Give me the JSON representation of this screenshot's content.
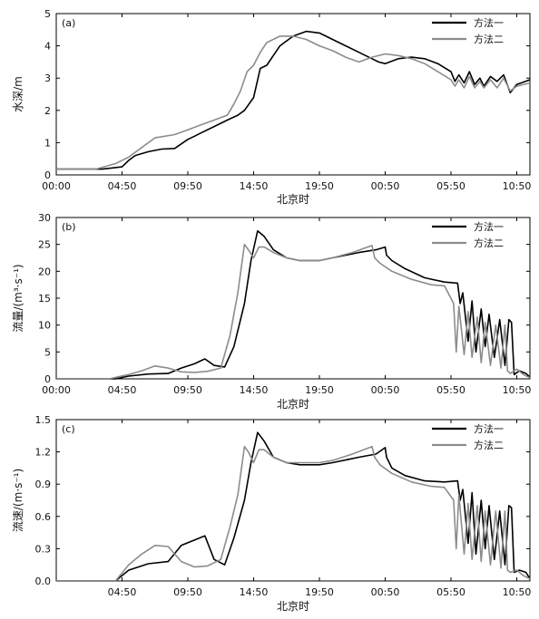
{
  "figure": {
    "panels": [
      {
        "id": "a",
        "label": "(a)",
        "ylabel": "水深/m",
        "xlabel": "北京时"
      },
      {
        "id": "b",
        "label": "(b)",
        "ylabel": "流量/(m³·s⁻¹)",
        "xlabel": "北京时"
      },
      {
        "id": "c",
        "label": "(c)",
        "ylabel": "流速/(m·s⁻¹)",
        "xlabel": "北京时"
      }
    ],
    "legend": {
      "method1": "方法一",
      "method2": "方法二"
    },
    "colors": {
      "method1": "#000000",
      "method2": "#8c8c8c"
    }
  },
  "chart_data": [
    {
      "type": "line",
      "panel": "(a)",
      "xlabel": "北京时",
      "ylabel": "水深/m",
      "xlim": [
        0,
        36
      ],
      "ylim": [
        0,
        5
      ],
      "x_ticks": [
        0,
        5,
        10,
        15,
        20,
        25,
        30,
        35
      ],
      "x_tick_labels": [
        "00:00",
        "04:50",
        "09:50",
        "14:50",
        "19:50",
        "00:50",
        "05:50",
        "10:50"
      ],
      "y_ticks": [
        0,
        1,
        2,
        3,
        4,
        5
      ],
      "y_tick_labels": [
        "0",
        "1",
        "2",
        "3",
        "4",
        "5"
      ],
      "legend_position": "top-right",
      "series": [
        {
          "name": "方法一",
          "x": [
            0,
            3.5,
            5,
            5.5,
            6,
            7,
            8,
            9,
            10,
            10.5,
            11,
            12,
            13,
            13.8,
            14.3,
            15,
            15.5,
            16,
            17,
            18,
            19,
            20,
            21,
            22,
            23,
            24,
            24.5,
            25,
            26,
            27,
            28,
            29,
            30,
            30.3,
            30.6,
            31,
            31.4,
            31.8,
            32.2,
            32.5,
            33,
            33.5,
            34,
            34.5,
            35,
            36
          ],
          "y": [
            0.18,
            0.18,
            0.25,
            0.45,
            0.6,
            0.72,
            0.8,
            0.82,
            1.1,
            1.2,
            1.3,
            1.5,
            1.7,
            1.85,
            2.0,
            2.4,
            3.3,
            3.4,
            4.0,
            4.3,
            4.45,
            4.4,
            4.2,
            4.0,
            3.8,
            3.6,
            3.5,
            3.45,
            3.6,
            3.65,
            3.6,
            3.45,
            3.2,
            2.9,
            3.1,
            2.85,
            3.2,
            2.8,
            3.0,
            2.75,
            3.05,
            2.9,
            3.1,
            2.55,
            2.8,
            2.95
          ]
        },
        {
          "name": "方法二",
          "x": [
            0,
            3,
            4.5,
            5.5,
            6.5,
            7.5,
            9,
            10,
            11,
            12,
            13,
            13.5,
            14,
            14.5,
            15,
            15.5,
            16,
            17,
            18,
            19,
            20,
            21,
            22,
            23,
            24,
            25,
            26,
            27,
            28,
            29,
            30,
            30.3,
            30.6,
            31,
            31.4,
            31.8,
            32.2,
            32.5,
            33,
            33.5,
            34,
            34.5,
            35,
            36
          ],
          "y": [
            0.18,
            0.18,
            0.35,
            0.55,
            0.85,
            1.15,
            1.25,
            1.4,
            1.55,
            1.7,
            1.85,
            2.2,
            2.6,
            3.2,
            3.4,
            3.8,
            4.1,
            4.3,
            4.3,
            4.2,
            4.0,
            3.85,
            3.65,
            3.5,
            3.65,
            3.75,
            3.7,
            3.6,
            3.45,
            3.2,
            2.95,
            2.75,
            2.95,
            2.7,
            3.05,
            2.7,
            2.9,
            2.7,
            2.95,
            2.7,
            3.0,
            2.6,
            2.75,
            2.85
          ]
        }
      ]
    },
    {
      "type": "line",
      "panel": "(b)",
      "xlabel": "北京时",
      "ylabel": "流量/(m³·s⁻¹)",
      "xlim": [
        0,
        36
      ],
      "ylim": [
        0,
        30
      ],
      "x_ticks": [
        0,
        5,
        10,
        15,
        20,
        25,
        30,
        35
      ],
      "x_tick_labels": [
        "00:00",
        "04:50",
        "09:50",
        "14:50",
        "19:50",
        "00:50",
        "05:50",
        "10:50"
      ],
      "y_ticks": [
        0,
        5,
        10,
        15,
        20,
        25,
        30
      ],
      "y_tick_labels": [
        "0",
        "5",
        "10",
        "15",
        "20",
        "25",
        "30"
      ],
      "legend_position": "top-right",
      "series": [
        {
          "name": "方法一",
          "x": [
            0,
            4.5,
            5.5,
            7,
            8.5,
            9.5,
            10.5,
            11.3,
            12,
            12.8,
            13.5,
            14.3,
            14.8,
            15.3,
            15.8,
            16.5,
            17.5,
            18.5,
            20,
            21,
            23,
            24.3,
            25,
            25.1,
            25.5,
            26.5,
            28,
            29.5,
            30.5,
            30.7,
            30.9,
            31.3,
            31.6,
            31.9,
            32.3,
            32.6,
            32.9,
            33.3,
            33.7,
            34.1,
            34.4,
            34.6,
            34.8,
            35.2,
            35.7,
            36
          ],
          "y": [
            0,
            0,
            0.5,
            0.9,
            1.0,
            2.0,
            2.8,
            3.7,
            2.5,
            2.2,
            6.0,
            14.0,
            22.0,
            27.5,
            26.5,
            24.0,
            22.5,
            22.0,
            22.0,
            22.5,
            23.5,
            24.0,
            24.5,
            23.0,
            22.0,
            20.5,
            18.8,
            18.0,
            17.8,
            14.0,
            16.0,
            7.0,
            14.5,
            5.0,
            13.0,
            6.0,
            12.0,
            4.0,
            11.0,
            2.5,
            11.0,
            10.5,
            0.8,
            1.5,
            1.0,
            0.3
          ]
        },
        {
          "name": "方法二",
          "x": [
            0,
            4,
            5.5,
            6.5,
            7.5,
            8.5,
            9.5,
            10.5,
            11.5,
            12.5,
            13.2,
            13.8,
            14.3,
            14.6,
            15,
            15.4,
            15.8,
            16.5,
            17.5,
            18.5,
            20,
            21,
            22.5,
            24,
            24.2,
            24.6,
            25.5,
            27,
            28.5,
            29.5,
            30.2,
            30.4,
            30.6,
            31,
            31.3,
            31.6,
            32,
            32.3,
            32.6,
            33,
            33.4,
            33.8,
            34.1,
            34.3,
            34.5,
            35,
            35.5,
            36
          ],
          "y": [
            0,
            0,
            0.8,
            1.5,
            2.4,
            2.0,
            1.3,
            1.2,
            1.4,
            2.0,
            8.0,
            16.0,
            25.0,
            24.0,
            22.5,
            24.5,
            24.5,
            23.5,
            22.5,
            22.0,
            22.0,
            22.5,
            23.5,
            24.8,
            22.5,
            21.5,
            20.0,
            18.5,
            17.5,
            17.3,
            14.0,
            5.0,
            13.5,
            4.5,
            12.5,
            4.0,
            11.5,
            3.0,
            10.5,
            2.5,
            10.0,
            2.0,
            10.0,
            1.5,
            1.0,
            1.8,
            0.8,
            0.2
          ]
        }
      ]
    },
    {
      "type": "line",
      "panel": "(c)",
      "xlabel": "北京时",
      "ylabel": "流速/(m·s⁻¹)",
      "xlim": [
        0,
        36
      ],
      "ylim": [
        0,
        1.5
      ],
      "x_ticks": [
        5,
        10,
        15,
        20,
        25,
        30,
        35
      ],
      "x_tick_labels": [
        "04:50",
        "09:50",
        "14:50",
        "19:50",
        "00:50",
        "05:50",
        "10:50"
      ],
      "y_ticks": [
        0,
        0.3,
        0.6,
        0.9,
        1.2,
        1.5
      ],
      "y_tick_labels": [
        "0.0",
        "0.3",
        "0.6",
        "0.9",
        "1.2",
        "1.5"
      ],
      "legend_position": "top-right",
      "series": [
        {
          "name": "方法一",
          "x": [
            0,
            4.5,
            5.5,
            7,
            8.5,
            9.5,
            10.5,
            11.3,
            12,
            12.8,
            13.5,
            14.3,
            14.8,
            15.3,
            15.8,
            16.5,
            17.5,
            18.5,
            20,
            21,
            23,
            24.3,
            25,
            25.1,
            25.5,
            26.5,
            28,
            29.5,
            30.5,
            30.7,
            30.9,
            31.3,
            31.6,
            31.9,
            32.3,
            32.6,
            32.9,
            33.3,
            33.7,
            34.1,
            34.4,
            34.6,
            34.8,
            35.2,
            35.7,
            36
          ],
          "y": [
            0,
            0,
            0.1,
            0.16,
            0.18,
            0.33,
            0.38,
            0.42,
            0.2,
            0.15,
            0.4,
            0.75,
            1.1,
            1.38,
            1.3,
            1.15,
            1.1,
            1.08,
            1.08,
            1.1,
            1.15,
            1.18,
            1.24,
            1.15,
            1.05,
            0.98,
            0.93,
            0.92,
            0.93,
            0.75,
            0.85,
            0.35,
            0.82,
            0.25,
            0.75,
            0.3,
            0.7,
            0.2,
            0.65,
            0.15,
            0.7,
            0.68,
            0.08,
            0.1,
            0.08,
            0.02
          ]
        },
        {
          "name": "方法二",
          "x": [
            0,
            4.5,
            5.5,
            6.5,
            7.5,
            8.5,
            9.5,
            10.5,
            11.5,
            12.5,
            13.2,
            13.8,
            14.3,
            14.6,
            15,
            15.4,
            15.8,
            16.5,
            17.5,
            18.5,
            20,
            21,
            22.5,
            24,
            24.2,
            24.6,
            25.5,
            27,
            28.5,
            29.5,
            30.2,
            30.4,
            30.6,
            31,
            31.3,
            31.6,
            32,
            32.3,
            32.6,
            33,
            33.4,
            33.8,
            34.1,
            34.3,
            34.5,
            35,
            35.5,
            36
          ],
          "y": [
            0,
            0,
            0.15,
            0.25,
            0.33,
            0.32,
            0.18,
            0.13,
            0.14,
            0.2,
            0.5,
            0.8,
            1.25,
            1.2,
            1.1,
            1.22,
            1.22,
            1.15,
            1.1,
            1.1,
            1.1,
            1.12,
            1.18,
            1.25,
            1.15,
            1.08,
            1.0,
            0.92,
            0.88,
            0.87,
            0.75,
            0.3,
            0.8,
            0.25,
            0.72,
            0.2,
            0.7,
            0.18,
            0.65,
            0.15,
            0.65,
            0.12,
            0.65,
            0.1,
            0.08,
            0.1,
            0.05,
            0.02
          ]
        }
      ]
    }
  ]
}
